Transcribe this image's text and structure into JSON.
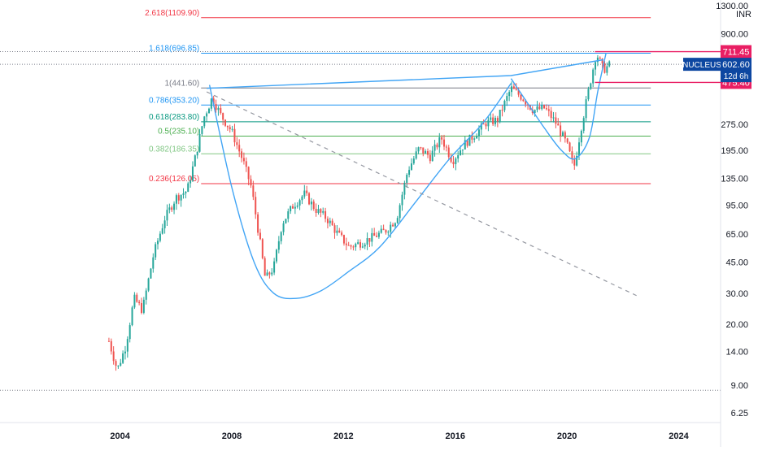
{
  "symbol": {
    "ticker": "NUCLEUS",
    "price_label": "602.60",
    "countdown": "12d 6h",
    "currency": "INR"
  },
  "colors": {
    "fib_red": "#f23645",
    "fib_blue": "#2196f3",
    "fib_gray": "#787b86",
    "fib_teal": "#089981",
    "fib_green": "#4caf50",
    "fib_lightgreen": "#81c784",
    "trend_blue": "#42a5f5",
    "candle_up": "#26a69a",
    "candle_down": "#ef5350",
    "marker_pink": "#e91e63",
    "ticker_bg": "#0d47a1"
  },
  "chart_data": {
    "type": "candlestick",
    "y_scale": "log",
    "x_axis_ticks": [
      "2004",
      "2008",
      "2012",
      "2016",
      "2020",
      "2024"
    ],
    "y_axis_ticks": [
      "1300.00",
      "900.00",
      "275.00",
      "195.00",
      "135.00",
      "95.00",
      "65.00",
      "45.00",
      "30.00",
      "20.00",
      "14.00",
      "9.00",
      "6.25"
    ],
    "xlim": [
      1999.7,
      2025.5
    ],
    "ylim": [
      5.5,
      1400
    ],
    "fib_levels": [
      {
        "ratio": "2.618",
        "price": "1109.90",
        "value": 1109.9,
        "color": "fib_red"
      },
      {
        "ratio": "1.618",
        "price": "696.85",
        "value": 696.85,
        "color": "fib_blue"
      },
      {
        "ratio": "1",
        "price": "441.60",
        "value": 441.6,
        "color": "fib_gray"
      },
      {
        "ratio": "0.786",
        "price": "353.20",
        "value": 353.2,
        "color": "fib_blue"
      },
      {
        "ratio": "0.618",
        "price": "283.80",
        "value": 283.8,
        "color": "fib_teal"
      },
      {
        "ratio": "0.5",
        "price": "235.10",
        "value": 235.1,
        "color": "fib_green"
      },
      {
        "ratio": "0.382",
        "price": "186.35",
        "value": 186.35,
        "color": "fib_lightgreen"
      },
      {
        "ratio": "0.236",
        "price": "126.05",
        "value": 126.05,
        "color": "fib_red"
      }
    ],
    "price_markers": [
      {
        "label": "711.45",
        "value": 711.45
      },
      {
        "label": "475.40",
        "value": 475.4
      }
    ],
    "current_price": 602.6,
    "low_line": 8.4,
    "price_path": [
      [
        2003.6,
        16
      ],
      [
        2003.9,
        11
      ],
      [
        2004.2,
        15
      ],
      [
        2004.5,
        28
      ],
      [
        2004.8,
        24
      ],
      [
        2005.2,
        50
      ],
      [
        2005.6,
        80
      ],
      [
        2006.0,
        105
      ],
      [
        2006.4,
        115
      ],
      [
        2006.7,
        180
      ],
      [
        2007.0,
        300
      ],
      [
        2007.3,
        390
      ],
      [
        2007.6,
        310
      ],
      [
        2008.0,
        250
      ],
      [
        2008.4,
        170
      ],
      [
        2008.7,
        120
      ],
      [
        2009.0,
        60
      ],
      [
        2009.2,
        36
      ],
      [
        2009.5,
        42
      ],
      [
        2009.8,
        75
      ],
      [
        2010.2,
        95
      ],
      [
        2010.6,
        110
      ],
      [
        2011.0,
        90
      ],
      [
        2011.4,
        80
      ],
      [
        2011.8,
        65
      ],
      [
        2012.2,
        55
      ],
      [
        2012.6,
        58
      ],
      [
        2013.0,
        62
      ],
      [
        2013.5,
        68
      ],
      [
        2013.9,
        80
      ],
      [
        2014.3,
        150
      ],
      [
        2014.7,
        200
      ],
      [
        2015.1,
        180
      ],
      [
        2015.5,
        230
      ],
      [
        2015.9,
        170
      ],
      [
        2016.3,
        210
      ],
      [
        2016.7,
        240
      ],
      [
        2017.1,
        280
      ],
      [
        2017.5,
        290
      ],
      [
        2018.0,
        440
      ],
      [
        2018.4,
        390
      ],
      [
        2018.8,
        330
      ],
      [
        2019.2,
        340
      ],
      [
        2019.6,
        280
      ],
      [
        2020.0,
        210
      ],
      [
        2020.25,
        155
      ],
      [
        2020.5,
        260
      ],
      [
        2020.8,
        450
      ],
      [
        2021.05,
        700
      ],
      [
        2021.3,
        560
      ],
      [
        2021.55,
        602
      ]
    ],
    "cup_curve": [
      [
        2007.2,
        460
      ],
      [
        2008.0,
        120
      ],
      [
        2008.8,
        45
      ],
      [
        2009.5,
        30
      ],
      [
        2010.3,
        28
      ],
      [
        2011.2,
        31
      ],
      [
        2012.2,
        40
      ],
      [
        2013.3,
        55
      ],
      [
        2014.6,
        100
      ],
      [
        2015.8,
        175
      ],
      [
        2017.0,
        280
      ],
      [
        2018.0,
        470
      ]
    ],
    "rising_wedge_line": [
      [
        2007.1,
        440
      ],
      [
        2018.0,
        520
      ],
      [
        2021.3,
        640
      ]
    ],
    "second_cup_curve": [
      [
        2018.0,
        500
      ],
      [
        2018.5,
        380
      ],
      [
        2019.2,
        260
      ],
      [
        2019.8,
        195
      ],
      [
        2020.3,
        175
      ],
      [
        2020.8,
        230
      ],
      [
        2021.1,
        420
      ],
      [
        2021.4,
        700
      ]
    ],
    "descending_dashed_line": [
      [
        2007.1,
        420
      ],
      [
        2022.5,
        29
      ]
    ]
  }
}
